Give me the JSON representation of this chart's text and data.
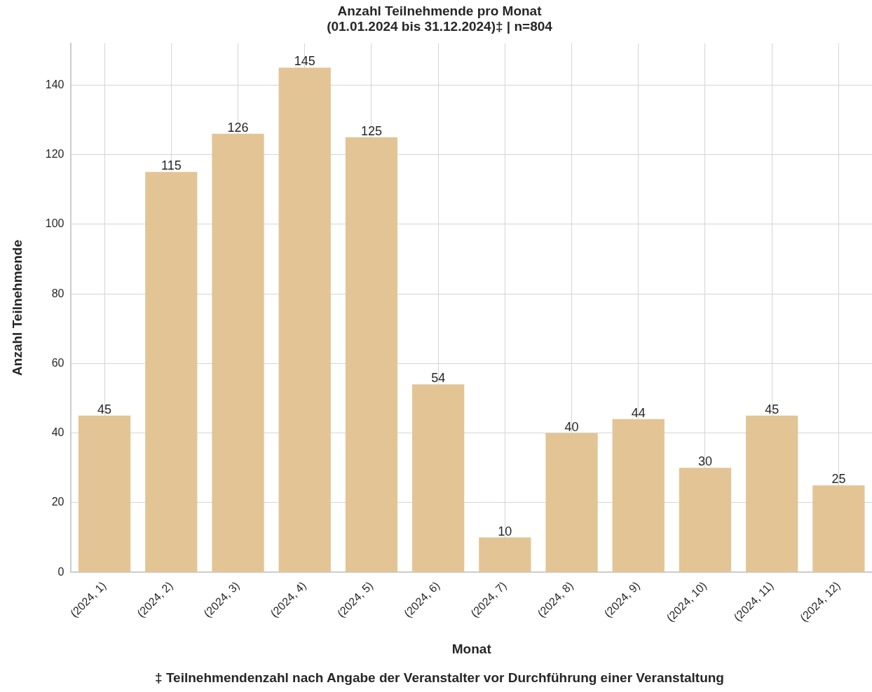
{
  "chart_data": {
    "type": "bar",
    "title": "Anzahl Teilnehmende pro Monat\n(01.01.2024 bis 31.12.2024)‡ | n=804",
    "xlabel": "Monat",
    "ylabel": "Anzahl Teilnehmende",
    "annotations": [
      "‡ Teilnehmendenzahl nach Angabe der Veranstalter vor Durchführung einer Veranstaltung"
    ],
    "categories": [
      "(2024, 1)",
      "(2024, 2)",
      "(2024, 3)",
      "(2024, 4)",
      "(2024, 5)",
      "(2024, 6)",
      "(2024, 7)",
      "(2024, 8)",
      "(2024, 9)",
      "(2024, 10)",
      "(2024, 11)",
      "(2024, 12)"
    ],
    "values": [
      45,
      115,
      126,
      145,
      125,
      54,
      10,
      40,
      44,
      30,
      45,
      25
    ],
    "color": "#e3c494",
    "ylim": [
      0,
      152
    ],
    "yticks": [
      0,
      20,
      40,
      60,
      80,
      100,
      120,
      140
    ],
    "grid": true,
    "data_labels": true
  }
}
